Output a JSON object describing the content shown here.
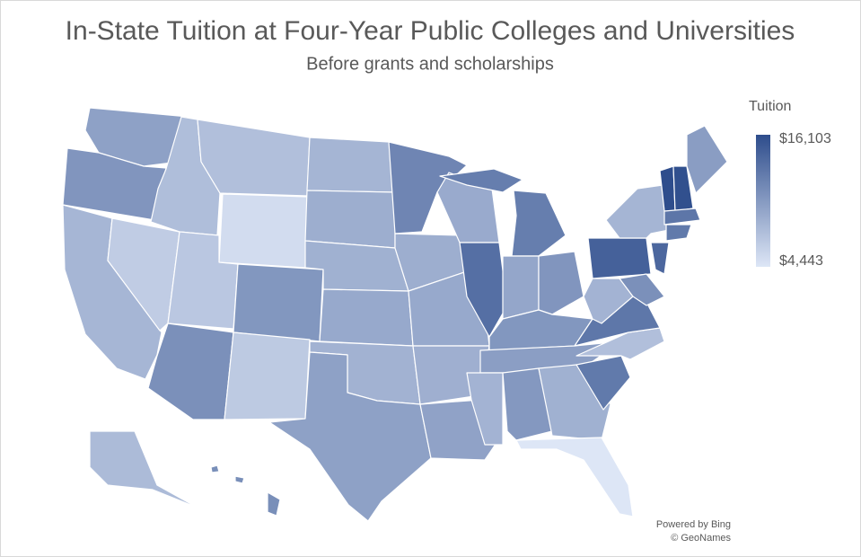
{
  "chart_data": {
    "type": "choropleth",
    "title": "In-State Tuition at Four-Year Public Colleges and Universities",
    "subtitle": "Before grants and scholarships",
    "legend_title": "Tuition",
    "legend_position": "right",
    "legend_range": [
      {
        "value": 16103,
        "label": "$16,103"
      },
      {
        "value": 4443,
        "label": "$4,443"
      }
    ],
    "colors": [
      "#dde6f6",
      "#2e4d8c"
    ],
    "values": [
      9700,
      10600,
      8100,
      6400,
      7500,
      7400,
      5200,
      6800,
      10500,
      11000,
      6600,
      8200,
      8700,
      8500,
      9100,
      8400,
      9700,
      11800,
      8700,
      9100,
      8600,
      9600,
      9000,
      13500,
      12400,
      9300,
      10600,
      10500,
      9900,
      8300,
      10400,
      8500,
      4443,
      12700,
      7400,
      12900,
      8300,
      14600,
      8200,
      14100,
      11000,
      16103,
      15900,
      10000,
      13000,
      12700,
      7700,
      11100
    ],
    "credits": [
      "Powered by Bing",
      "© GeoNames"
    ]
  }
}
